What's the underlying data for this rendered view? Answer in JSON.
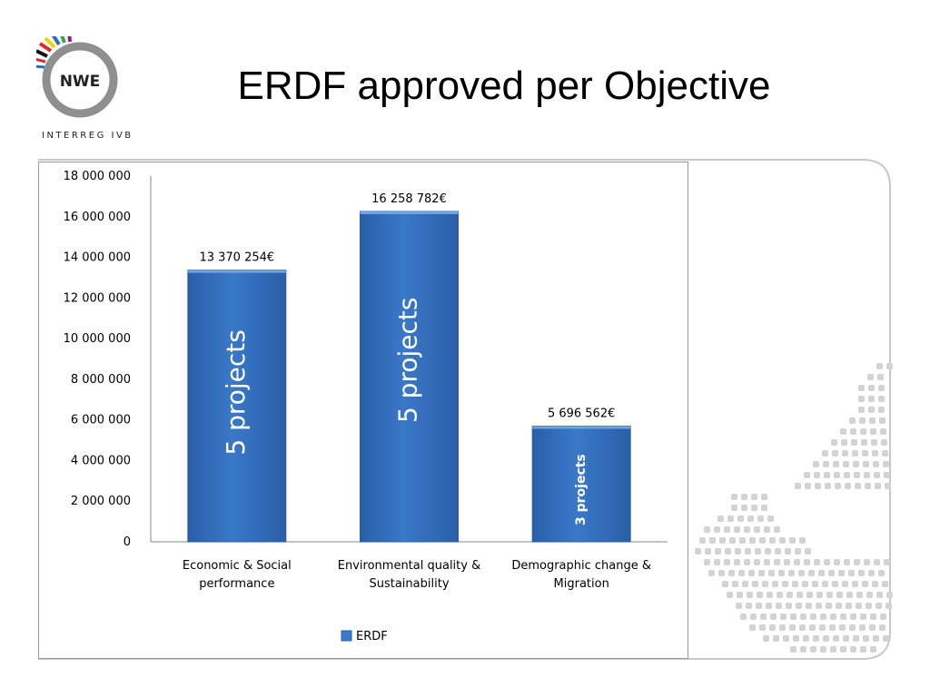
{
  "slide": {
    "title": "ERDF approved per Objective",
    "logo_text": "NWE",
    "logo_caption": "INTERREG IVB"
  },
  "chart_data": {
    "type": "bar",
    "categories": [
      [
        "Economic & Social",
        "performance"
      ],
      [
        "Environmental quality &",
        "Sustainability"
      ],
      [
        "Demographic change &",
        "Migration"
      ]
    ],
    "series": [
      {
        "name": "ERDF",
        "values": [
          13370254,
          16258782,
          5696562
        ],
        "color": "#3a78c8"
      }
    ],
    "data_labels": [
      "13 370 254€",
      "16 258 782€",
      "5 696 562€"
    ],
    "bar_annotations": [
      "5 projects",
      "5 projects",
      "3 projects"
    ],
    "y_ticks": [
      "0",
      "2 000 000",
      "4 000 000",
      "6 000 000",
      "8 000 000",
      "10 000 000",
      "12 000 000",
      "14 000 000",
      "16 000 000",
      "18 000 000"
    ],
    "ylim": [
      0,
      18000000
    ],
    "y_step": 2000000,
    "legend_position": "bottom",
    "grid": false
  }
}
